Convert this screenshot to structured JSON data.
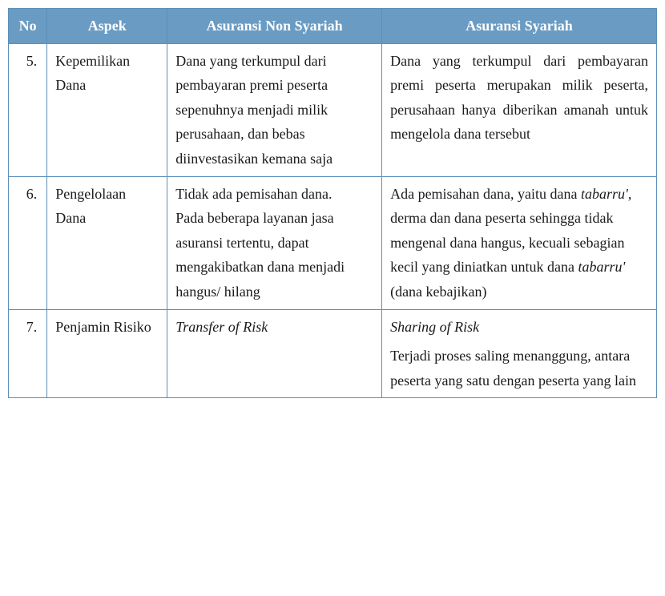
{
  "table": {
    "header_bg": "#6a9bc3",
    "header_color": "#ffffff",
    "border_color": "#5b8fb9",
    "columns": {
      "no": "No",
      "aspek": "Aspek",
      "non_syariah": "Asuransi Non Syariah",
      "syariah": "Asuransi Syariah"
    },
    "rows": [
      {
        "no": "5.",
        "aspek": "Kepemilikan Dana",
        "non_syariah": "Dana yang terkumpul dari pembayaran premi peserta sepenuhnya menjadi milik perusahaan, dan bebas diinvestasikan kemana saja",
        "syariah": "Dana yang terkumpul dari pembayaran premi peserta merupakan milik peserta, perusahaan hanya diberikan amanah untuk mengelola dana tersebut",
        "syariah_justify": true
      },
      {
        "no": "6.",
        "aspek": "Pengelolaan Dana",
        "non_syariah_html": "Tidak ada pemisahan dana.<br>Pada beberapa layanan jasa asuransi tertentu, dapat mengakibatkan dana menjadi hangus/ hilang",
        "syariah_html": "Ada pemisahan dana, yaitu dana <em>tabarru'</em>, derma dan dana peserta sehingga tidak mengenal dana hangus, kecuali sebagian kecil yang diniatkan untuk dana <em>tabarru'</em> (dana kebajikan)"
      },
      {
        "no": "7.",
        "aspek": "Penjamin Risiko",
        "non_syariah_html": "<em>Transfer of Risk</em>",
        "syariah_html": "<em>Sharing of Risk</em><div style='margin-top:6px'>Terjadi proses saling menanggung, antara peserta yang satu dengan peserta yang lain</div>"
      }
    ]
  }
}
